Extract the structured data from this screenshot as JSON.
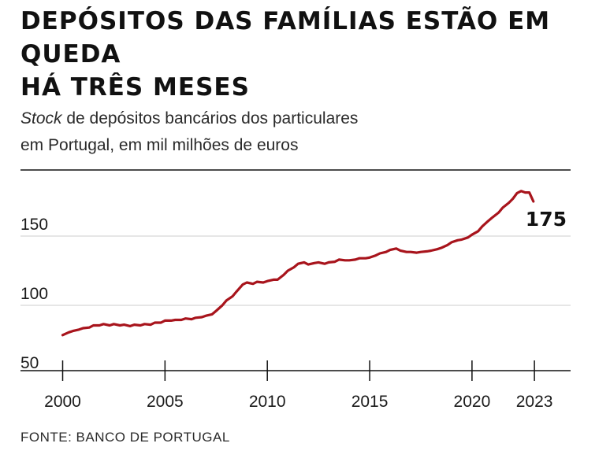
{
  "header": {
    "title_line1": "DEPÓSITOS DAS FAMÍLIAS ESTÃO EM",
    "title_line2": "QUEDA",
    "title_line3": "HÁ TRÊS MESES",
    "subtitle_italic": "Stock",
    "subtitle_rest": " de depósitos bancários dos particulares",
    "subtitle_line2": "em Portugal, em mil milhões de euros"
  },
  "footer": {
    "source": "FONTE: BANCO DE PORTUGAL"
  },
  "colors": {
    "line": "#a8141c",
    "grid": "#cccccc",
    "axis": "#111111"
  },
  "chart_data": {
    "type": "line",
    "title": "DEPÓSITOS DAS FAMÍLIAS ESTÃO EM QUEDA HÁ TRÊS MESES",
    "subtitle": "Stock de depósitos bancários dos particulares em Portugal, em mil milhões de euros",
    "xlabel": "",
    "ylabel": "",
    "xlim": [
      2000,
      2023.3
    ],
    "ylim": [
      48,
      205
    ],
    "xticks": [
      2000,
      2005,
      2010,
      2015,
      2020,
      2023
    ],
    "yticks": [
      50,
      100,
      150
    ],
    "grid": true,
    "end_label": "175",
    "series": [
      {
        "x": [
          2000.0,
          2000.3,
          2000.5,
          2000.8,
          2001.0,
          2001.3,
          2001.5,
          2001.8,
          2002.0,
          2002.3,
          2002.5,
          2002.8,
          2003.0,
          2003.3,
          2003.5,
          2003.8,
          2004.0,
          2004.3,
          2004.5,
          2004.8,
          2005.0,
          2005.3,
          2005.5,
          2005.8,
          2006.0,
          2006.3,
          2006.5,
          2006.8,
          2007.0,
          2007.3,
          2007.5,
          2007.8,
          2008.0,
          2008.3,
          2008.5,
          2008.8,
          2009.0,
          2009.3,
          2009.5,
          2009.8,
          2010.0,
          2010.3,
          2010.5,
          2010.8,
          2011.0,
          2011.3,
          2011.5,
          2011.8,
          2012.0,
          2012.3,
          2012.5,
          2012.8,
          2013.0,
          2013.3,
          2013.5,
          2013.8,
          2014.0,
          2014.3,
          2014.5,
          2014.8,
          2015.0,
          2015.3,
          2015.5,
          2015.8,
          2016.0,
          2016.3,
          2016.5,
          2016.8,
          2017.0,
          2017.3,
          2017.5,
          2017.8,
          2018.0,
          2018.3,
          2018.5,
          2018.8,
          2019.0,
          2019.3,
          2019.5,
          2019.8,
          2020.0,
          2020.3,
          2020.5,
          2020.8,
          2021.0,
          2021.3,
          2021.5,
          2021.8,
          2022.0,
          2022.2,
          2022.4,
          2022.6,
          2022.8,
          2023.0
        ],
        "values": [
          78.5,
          80.5,
          81.5,
          82.5,
          83.5,
          84.0,
          85.5,
          85.5,
          86.5,
          85.5,
          86.5,
          85.5,
          86.0,
          85.0,
          86.0,
          85.5,
          86.5,
          86.0,
          87.5,
          87.5,
          89.0,
          89.0,
          89.5,
          89.5,
          90.5,
          90.0,
          91.0,
          91.5,
          92.5,
          93.5,
          96.0,
          100.0,
          103.5,
          106.5,
          110.0,
          115.0,
          116.5,
          115.5,
          117.0,
          116.5,
          117.5,
          118.5,
          118.5,
          122.0,
          125.0,
          127.5,
          130.0,
          131.0,
          129.5,
          130.5,
          131.0,
          130.0,
          131.0,
          131.5,
          133.0,
          132.5,
          132.5,
          133.0,
          134.0,
          134.0,
          134.5,
          136.0,
          137.5,
          138.5,
          140.0,
          141.0,
          139.5,
          138.5,
          138.5,
          138.0,
          138.5,
          139.0,
          139.5,
          140.5,
          141.5,
          143.5,
          145.5,
          147.0,
          147.5,
          149.0,
          151.0,
          153.5,
          157.0,
          161.0,
          163.5,
          167.0,
          170.5,
          174.0,
          177.0,
          181.0,
          182.5,
          181.5,
          181.5,
          175.0
        ]
      }
    ]
  }
}
